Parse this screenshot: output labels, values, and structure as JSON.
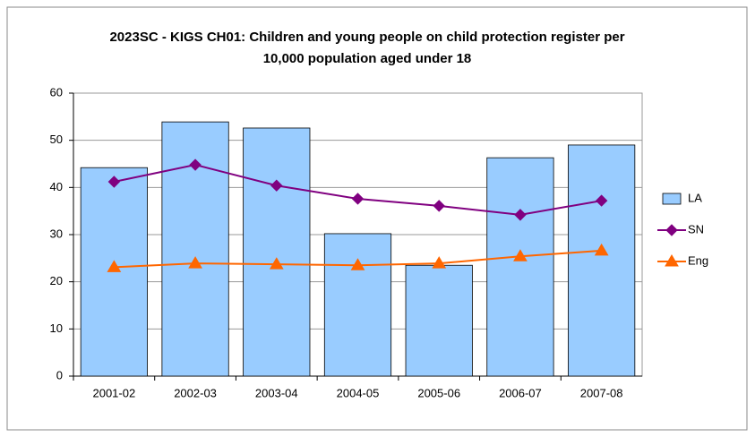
{
  "chart_data": {
    "type": "combo",
    "title": "2023SC - KIGS CH01: Children and young people on child protection register per 10,000 population aged under 18",
    "categories": [
      "2001-02",
      "2002-03",
      "2003-04",
      "2004-05",
      "2005-06",
      "2006-07",
      "2007-08"
    ],
    "series": [
      {
        "name": "LA",
        "type": "bar",
        "color": "#99ccff",
        "values": [
          44.2,
          53.9,
          52.6,
          30.2,
          23.5,
          46.3,
          49.0
        ]
      },
      {
        "name": "SN",
        "type": "line",
        "marker": "diamond",
        "color": "#800080",
        "values": [
          41.2,
          44.8,
          40.4,
          37.6,
          36.1,
          34.2,
          37.2
        ]
      },
      {
        "name": "Eng",
        "type": "line",
        "marker": "triangle",
        "color": "#ff6600",
        "values": [
          23.1,
          23.9,
          23.7,
          23.5,
          23.9,
          25.4,
          26.6
        ]
      }
    ],
    "ylim": [
      0,
      60
    ],
    "yticks": [
      0,
      10,
      20,
      30,
      40,
      50,
      60
    ],
    "grid": true,
    "legend": "right"
  }
}
